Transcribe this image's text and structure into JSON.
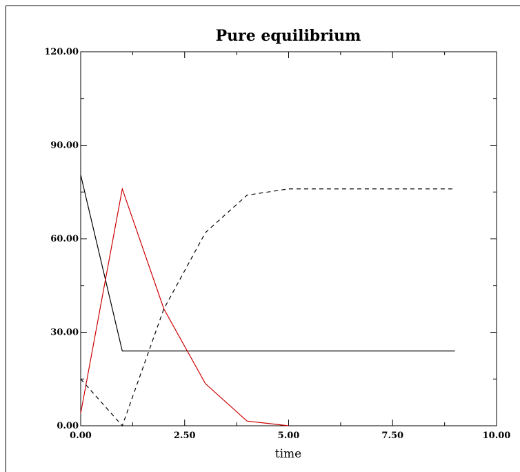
{
  "chart_data": {
    "type": "line",
    "title": "Pure equilibrium",
    "xlabel": "time",
    "ylabel": "",
    "xlim": [
      0,
      10
    ],
    "ylim": [
      0,
      120
    ],
    "x_ticks": [
      "0.00",
      "2.50",
      "5.00",
      "7.50",
      "10.00"
    ],
    "y_ticks": [
      "0.00",
      "30.00",
      "60.00",
      "90.00",
      "120.00"
    ],
    "grid": false,
    "series": [
      {
        "color": "#000000",
        "style": "solid",
        "x": [
          0,
          1,
          2,
          3,
          4,
          5,
          6,
          7,
          8,
          9
        ],
        "values": [
          80.5,
          24,
          24,
          24,
          24,
          24,
          24,
          24,
          24,
          24
        ]
      },
      {
        "color": "#cc0000",
        "style": "solid",
        "x": [
          0,
          1,
          2,
          3,
          4,
          5
        ],
        "values": [
          4,
          76,
          37.5,
          13.5,
          1.5,
          0
        ]
      },
      {
        "color": "#000000",
        "style": "dashed",
        "x": [
          0,
          1,
          2,
          3,
          4,
          5,
          6,
          7,
          8,
          9
        ],
        "values": [
          15,
          0,
          37.5,
          62,
          74,
          76,
          76,
          76,
          76,
          76
        ]
      }
    ]
  }
}
